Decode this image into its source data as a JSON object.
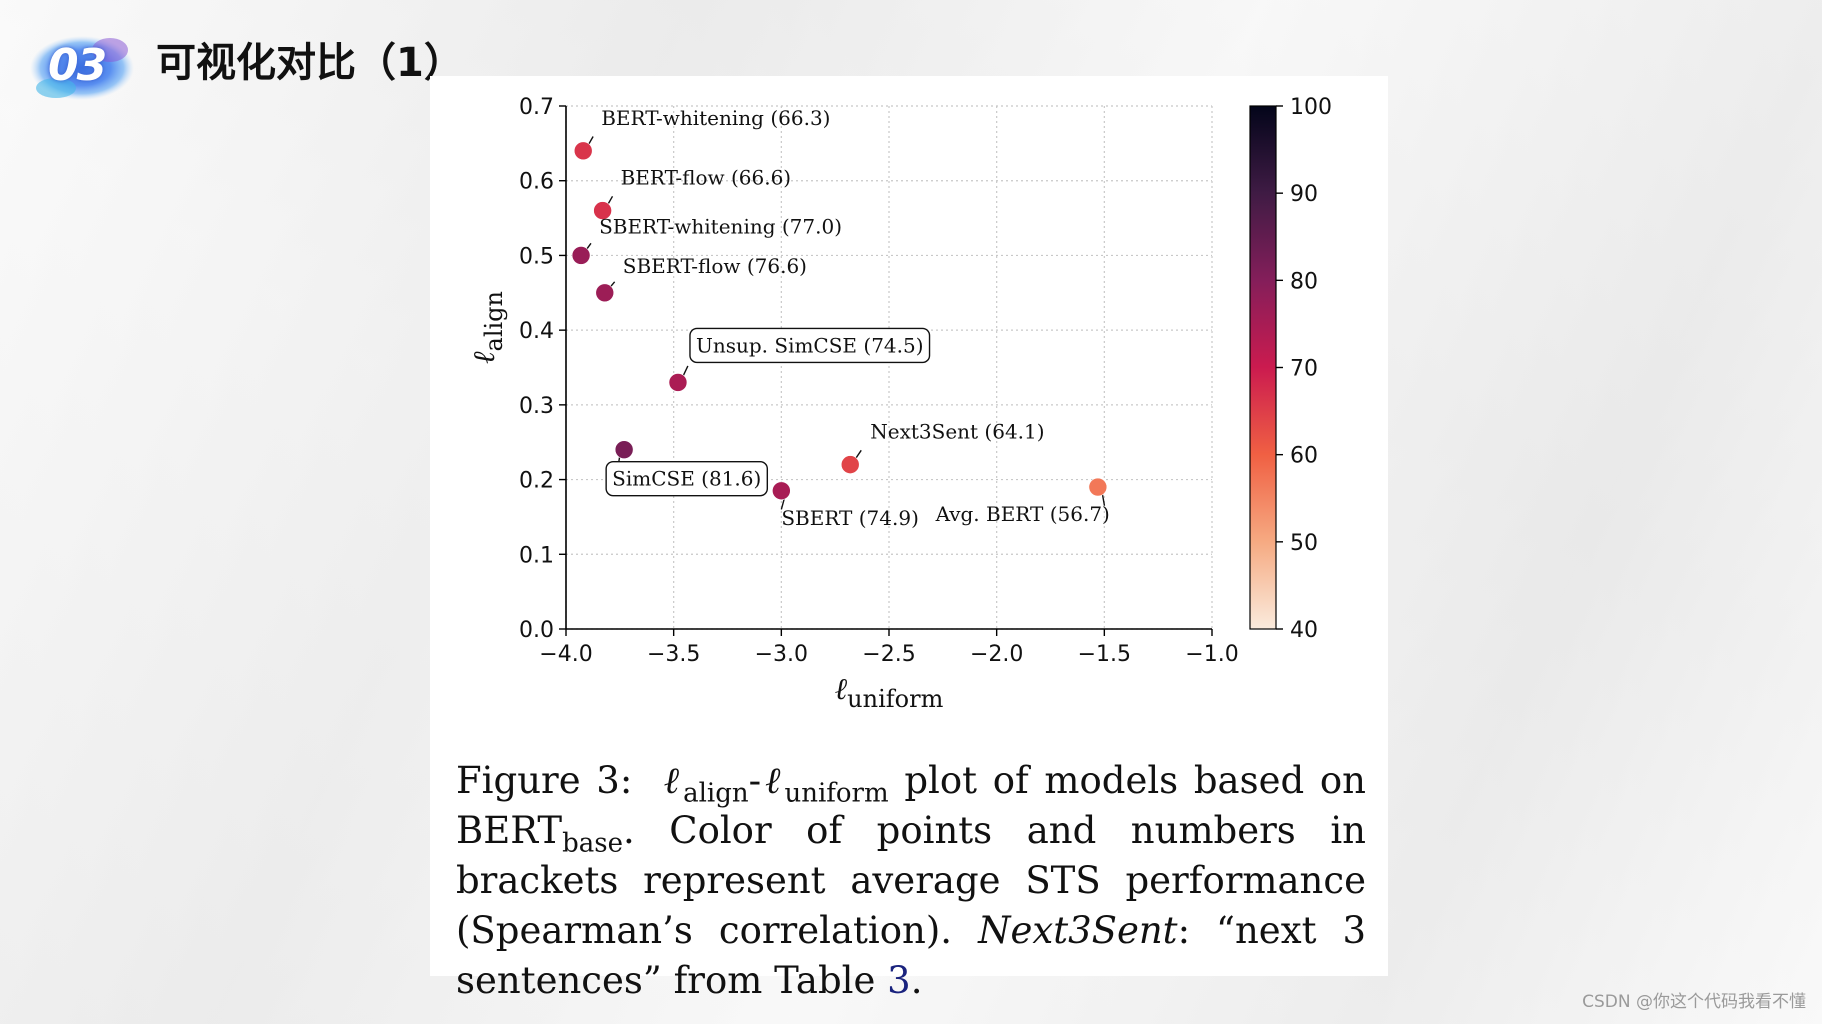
{
  "slide": {
    "badge_number": "03",
    "title": "可视化对比（1）",
    "watermark": "CSDN @你这个代码我看不懂"
  },
  "caption": {
    "figure_label": "Figure 3:",
    "part_align": "ℓ",
    "sub_align": "align",
    "dash": "-",
    "part_uniform": "ℓ",
    "sub_uniform": "uniform",
    "text_1": "plot of models based on BERT",
    "sub_base": "base",
    "text_2": ". Color of points and numbers in brackets represent average STS performance (Spearman’s correlation).",
    "italic_term": "Next3Sent",
    "text_3": ": “next 3 sentences” from Table",
    "link_text": "3",
    "text_4": "."
  },
  "chart_data": {
    "type": "scatter",
    "xlabel": "ℓ",
    "xlabel_sub": "uniform",
    "ylabel": "ℓ",
    "ylabel_sub": "align",
    "xlim": [
      -4.0,
      -1.0
    ],
    "ylim": [
      0.0,
      0.7
    ],
    "xticks": [
      -4.0,
      -3.5,
      -3.0,
      -2.5,
      -2.0,
      -1.5,
      -1.0
    ],
    "xtick_labels": [
      "−4.0",
      "−3.5",
      "−3.0",
      "−2.5",
      "−2.0",
      "−1.5",
      "−1.0"
    ],
    "yticks": [
      0.0,
      0.1,
      0.2,
      0.3,
      0.4,
      0.5,
      0.6,
      0.7
    ],
    "ytick_labels": [
      "0.0",
      "0.1",
      "0.2",
      "0.3",
      "0.4",
      "0.5",
      "0.6",
      "0.7"
    ],
    "grid": true,
    "colorbar": {
      "min": 40,
      "max": 100,
      "ticks": [
        40,
        50,
        60,
        70,
        80,
        90,
        100
      ],
      "tick_labels": [
        "40",
        "50",
        "60",
        "70",
        "80",
        "90",
        "100"
      ],
      "colors": [
        "#faebdd",
        "#f6aa82",
        "#f06043",
        "#cb1b4f",
        "#841e5a",
        "#3f1b44",
        "#03051a"
      ]
    },
    "points": [
      {
        "label": "BERT-whitening (66.3)",
        "x": -3.92,
        "y": 0.64,
        "score": 66.3,
        "boxed": false
      },
      {
        "label": "BERT-flow (66.6)",
        "x": -3.83,
        "y": 0.56,
        "score": 66.6,
        "boxed": false
      },
      {
        "label": "SBERT-whitening (77.0)",
        "x": -3.93,
        "y": 0.5,
        "score": 77.0,
        "boxed": false
      },
      {
        "label": "SBERT-flow (76.6)",
        "x": -3.82,
        "y": 0.45,
        "score": 76.6,
        "boxed": false
      },
      {
        "label": "Unsup. SimCSE (74.5)",
        "x": -3.48,
        "y": 0.33,
        "score": 74.5,
        "boxed": true
      },
      {
        "label": "SimCSE (81.6)",
        "x": -3.73,
        "y": 0.24,
        "score": 81.6,
        "boxed": true
      },
      {
        "label": "Next3Sent (64.1)",
        "x": -2.68,
        "y": 0.22,
        "score": 64.1,
        "boxed": false
      },
      {
        "label": "SBERT (74.9)",
        "x": -3.0,
        "y": 0.185,
        "score": 74.9,
        "boxed": false
      },
      {
        "label": "Avg. BERT (56.7)",
        "x": -1.53,
        "y": 0.19,
        "score": 56.7,
        "boxed": false
      }
    ]
  }
}
